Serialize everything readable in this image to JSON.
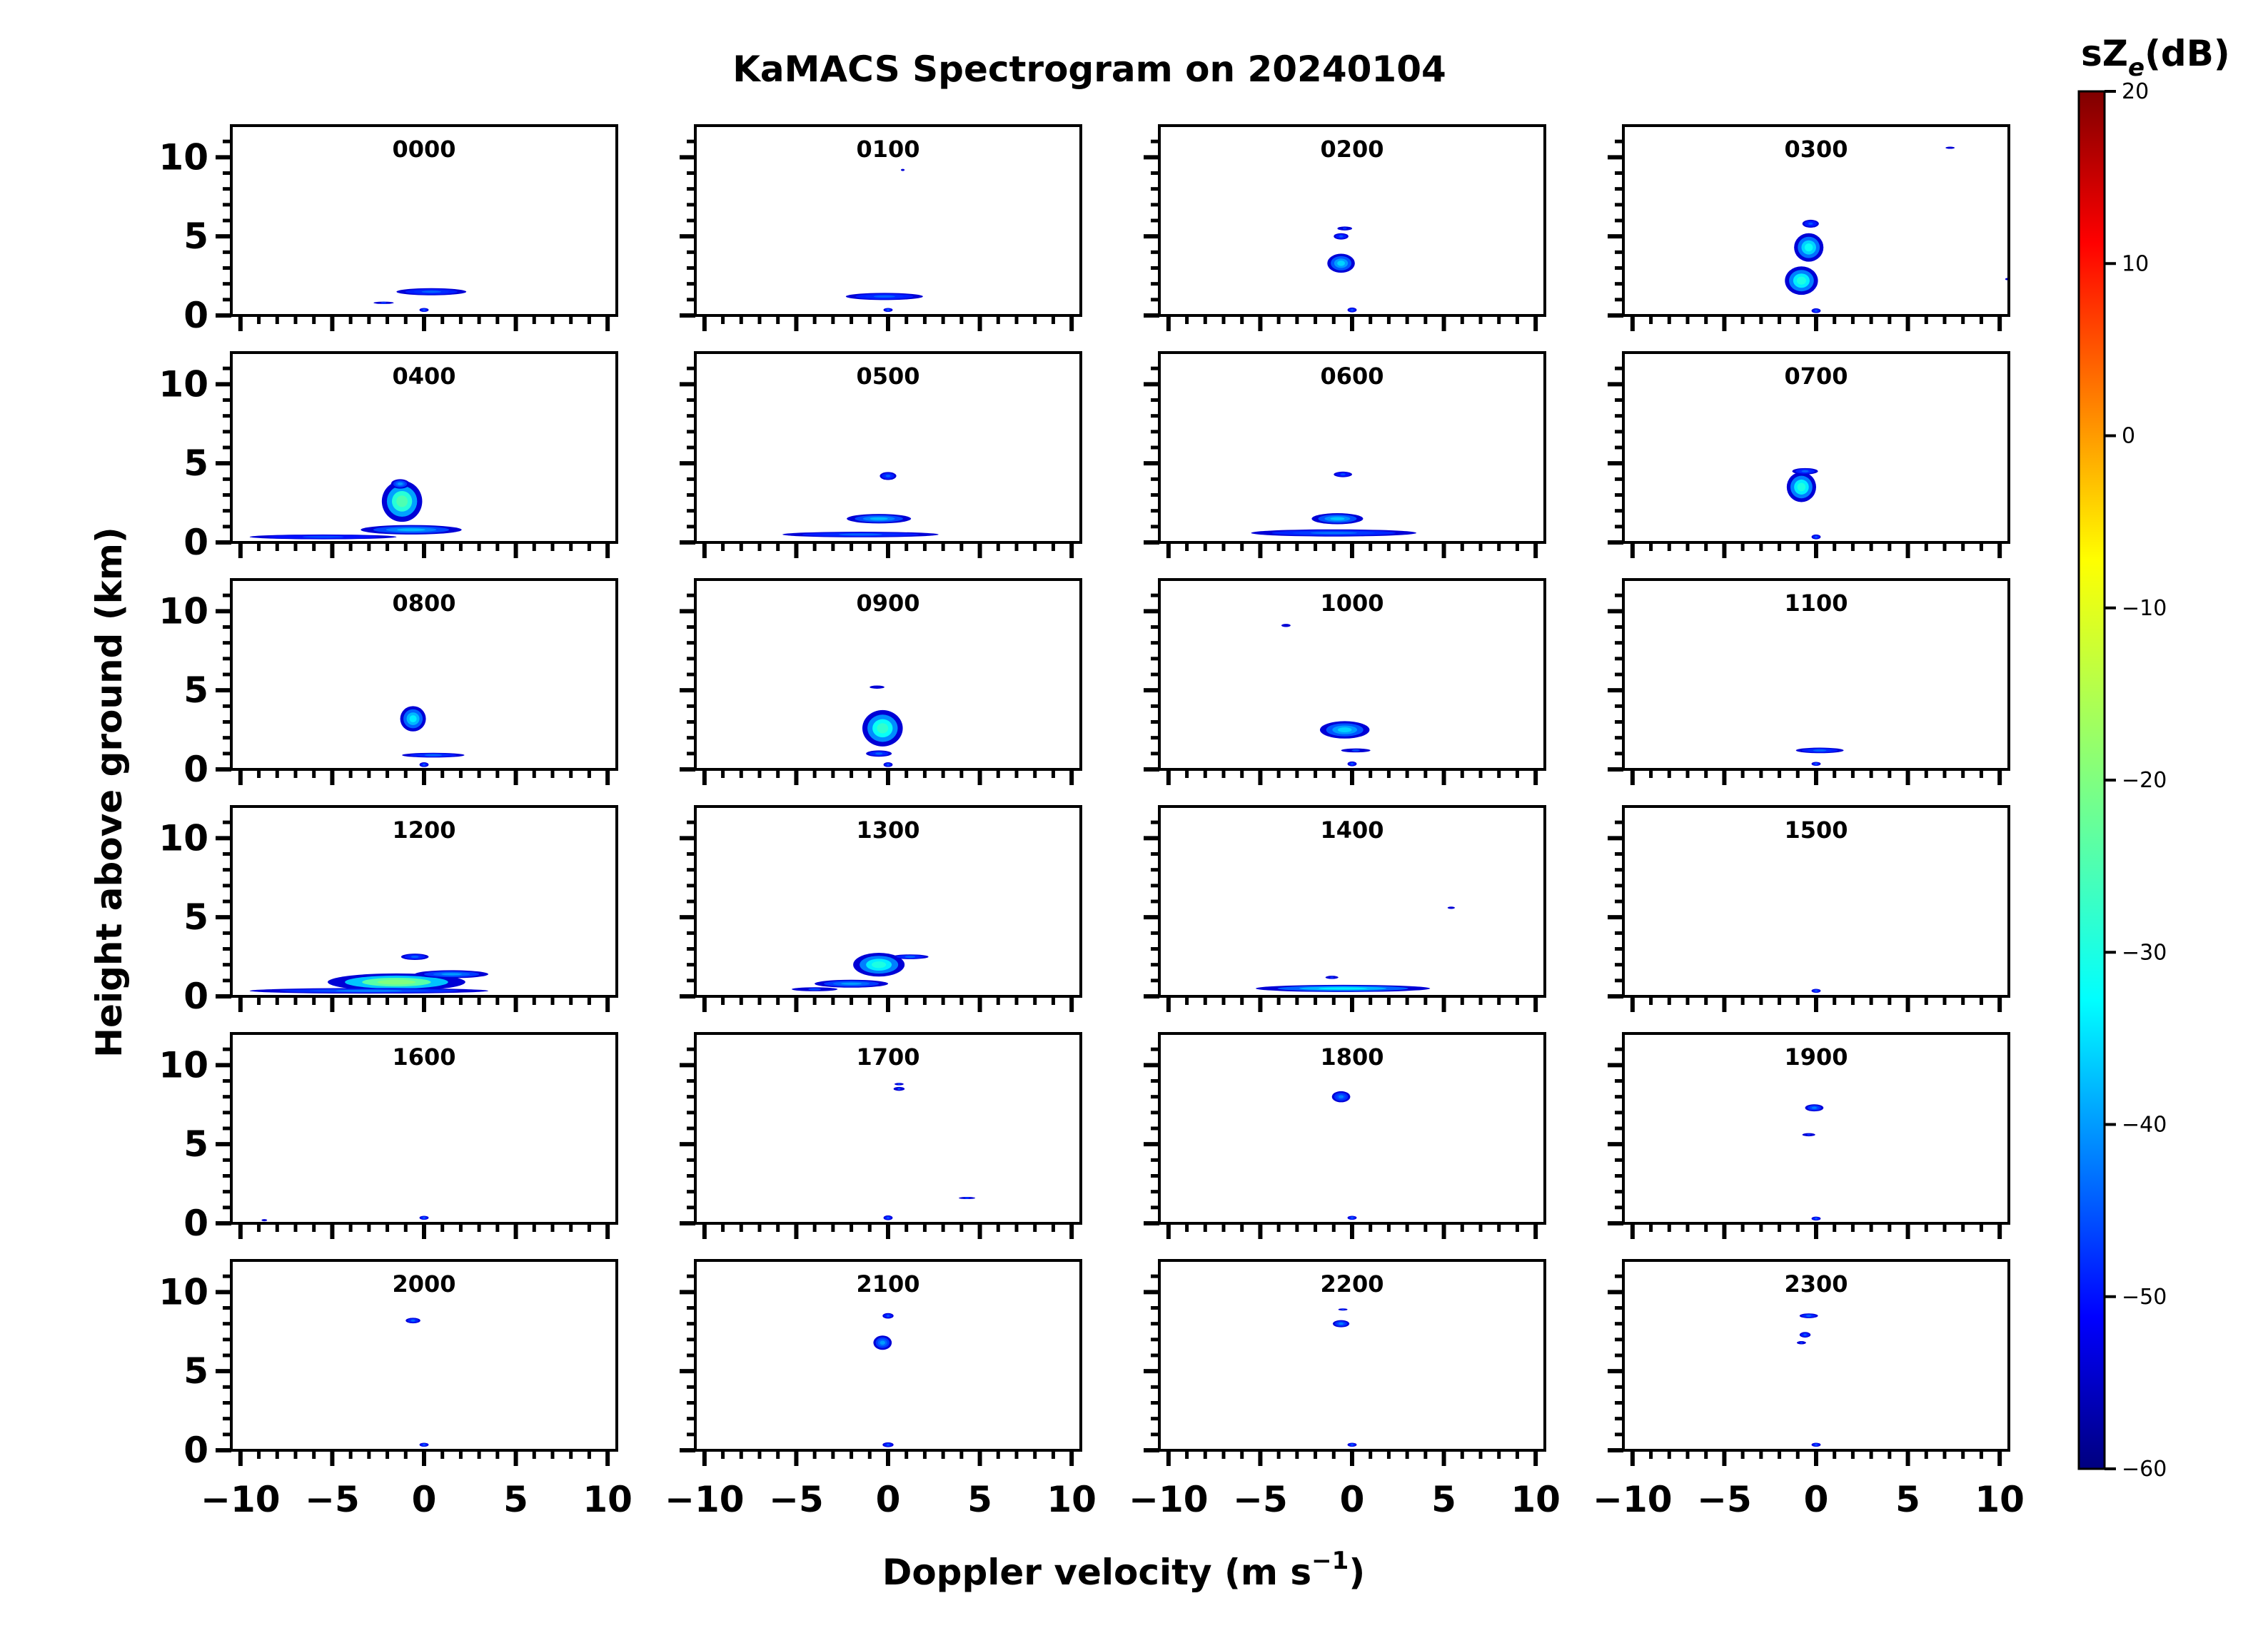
{
  "chart_data": {
    "type": "heatmap",
    "title": "KaMACS Spectrogram on 20240104",
    "xlabel": "Doppler velocity (m s⁻¹)",
    "xlabel_main": "Doppler velocity (m s",
    "xlabel_sup": "−1",
    "xlabel_close": ")",
    "ylabel": "Height above ground (km)",
    "xlim": [
      -10.5,
      10.5
    ],
    "ylim": [
      0,
      12
    ],
    "xticks": [
      -10,
      -5,
      0,
      5,
      10
    ],
    "xtick_labels": [
      "−10",
      "−5",
      "0",
      "5",
      "10"
    ],
    "yticks": [
      0,
      5,
      10
    ],
    "ytick_labels": [
      "0",
      "5",
      "10"
    ],
    "colorbar": {
      "label_main": "sZ",
      "label_sub": "e",
      "label_unit": "(dB)",
      "range": [
        -60,
        20
      ],
      "ticks": [
        20,
        10,
        0,
        -10,
        -20,
        -30,
        -40,
        -50,
        -60
      ],
      "tick_labels": [
        "20",
        "10",
        "0",
        "−10",
        "−20",
        "−30",
        "−40",
        "−50",
        "−60"
      ],
      "colormap": "jet",
      "colors": [
        "#00007f",
        "#0000ff",
        "#0080ff",
        "#00ffff",
        "#80ff80",
        "#ffff00",
        "#ff8000",
        "#ff0000",
        "#7f0000"
      ]
    },
    "panels": [
      {
        "label": "0000",
        "blobs": [
          {
            "v": 0.4,
            "h": 1.5,
            "w": 3.8,
            "t": 0.45,
            "p": -44
          },
          {
            "v": -2.2,
            "h": 0.8,
            "w": 1.1,
            "t": 0.15,
            "p": -48
          },
          {
            "v": 0.0,
            "h": 0.35,
            "w": 0.5,
            "t": 0.25,
            "p": -45
          }
        ]
      },
      {
        "label": "0100",
        "blobs": [
          {
            "v": -0.2,
            "h": 1.2,
            "w": 4.2,
            "t": 0.45,
            "p": -44
          },
          {
            "v": 0.0,
            "h": 0.35,
            "w": 0.5,
            "t": 0.25,
            "p": -45
          },
          {
            "v": 0.8,
            "h": 9.2,
            "w": 0.2,
            "t": 0.1,
            "p": -50
          }
        ]
      },
      {
        "label": "0200",
        "blobs": [
          {
            "v": -0.6,
            "h": 3.3,
            "w": 1.5,
            "t": 1.2,
            "p": -36
          },
          {
            "v": -0.6,
            "h": 5.0,
            "w": 0.8,
            "t": 0.4,
            "p": -45
          },
          {
            "v": -0.4,
            "h": 5.5,
            "w": 0.8,
            "t": 0.25,
            "p": -48
          },
          {
            "v": 0.0,
            "h": 0.35,
            "w": 0.5,
            "t": 0.3,
            "p": -45
          }
        ]
      },
      {
        "label": "0300",
        "blobs": [
          {
            "v": -0.8,
            "h": 2.2,
            "w": 1.8,
            "t": 1.8,
            "p": -30
          },
          {
            "v": -0.4,
            "h": 4.3,
            "w": 1.6,
            "t": 1.8,
            "p": -32
          },
          {
            "v": -0.3,
            "h": 5.8,
            "w": 0.9,
            "t": 0.5,
            "p": -45
          },
          {
            "v": 0.0,
            "h": 0.3,
            "w": 0.5,
            "t": 0.3,
            "p": -45
          },
          {
            "v": 7.3,
            "h": 10.6,
            "w": 0.5,
            "t": 0.1,
            "p": -50
          },
          {
            "v": 10.4,
            "h": 2.3,
            "w": 0.2,
            "t": 0.1,
            "p": -50
          }
        ]
      },
      {
        "label": "0400",
        "blobs": [
          {
            "v": -1.2,
            "h": 2.6,
            "w": 2.2,
            "t": 2.6,
            "p": -25
          },
          {
            "v": -0.7,
            "h": 0.8,
            "w": 5.5,
            "t": 0.6,
            "p": -38
          },
          {
            "v": -5.5,
            "h": 0.35,
            "w": 8.0,
            "t": 0.3,
            "p": -46
          },
          {
            "v": -1.3,
            "h": 3.7,
            "w": 1.0,
            "t": 0.6,
            "p": -40
          }
        ]
      },
      {
        "label": "0500",
        "blobs": [
          {
            "v": -0.5,
            "h": 1.5,
            "w": 3.5,
            "t": 0.6,
            "p": -38
          },
          {
            "v": -1.5,
            "h": 0.5,
            "w": 8.5,
            "t": 0.35,
            "p": -44
          },
          {
            "v": 0.0,
            "h": 4.2,
            "w": 0.9,
            "t": 0.5,
            "p": -44
          }
        ]
      },
      {
        "label": "0600",
        "blobs": [
          {
            "v": -0.8,
            "h": 1.5,
            "w": 2.8,
            "t": 0.7,
            "p": -37
          },
          {
            "v": -1.0,
            "h": 0.6,
            "w": 9.0,
            "t": 0.45,
            "p": -43
          },
          {
            "v": -0.5,
            "h": 4.3,
            "w": 1.0,
            "t": 0.35,
            "p": -46
          }
        ]
      },
      {
        "label": "0700",
        "blobs": [
          {
            "v": -0.8,
            "h": 3.5,
            "w": 1.6,
            "t": 1.9,
            "p": -30
          },
          {
            "v": -0.6,
            "h": 4.5,
            "w": 1.4,
            "t": 0.4,
            "p": -44
          },
          {
            "v": 0.0,
            "h": 0.35,
            "w": 0.5,
            "t": 0.3,
            "p": -45
          }
        ]
      },
      {
        "label": "0800",
        "blobs": [
          {
            "v": -0.6,
            "h": 3.2,
            "w": 1.4,
            "t": 1.6,
            "p": -34
          },
          {
            "v": 0.5,
            "h": 0.9,
            "w": 3.4,
            "t": 0.3,
            "p": -44
          },
          {
            "v": 0.0,
            "h": 0.3,
            "w": 0.5,
            "t": 0.3,
            "p": -45
          }
        ]
      },
      {
        "label": "0900",
        "blobs": [
          {
            "v": -0.3,
            "h": 2.6,
            "w": 2.2,
            "t": 2.3,
            "p": -28
          },
          {
            "v": -0.5,
            "h": 1.0,
            "w": 1.4,
            "t": 0.4,
            "p": -44
          },
          {
            "v": -0.6,
            "h": 5.2,
            "w": 0.8,
            "t": 0.2,
            "p": -50
          },
          {
            "v": 0.0,
            "h": 0.3,
            "w": 0.5,
            "t": 0.3,
            "p": -45
          }
        ]
      },
      {
        "label": "1000",
        "blobs": [
          {
            "v": -0.4,
            "h": 2.5,
            "w": 2.7,
            "t": 1.1,
            "p": -36
          },
          {
            "v": 0.2,
            "h": 1.2,
            "w": 1.6,
            "t": 0.25,
            "p": -46
          },
          {
            "v": -3.6,
            "h": 9.1,
            "w": 0.5,
            "t": 0.2,
            "p": -50
          },
          {
            "v": 0.0,
            "h": 0.35,
            "w": 0.5,
            "t": 0.3,
            "p": -45
          }
        ]
      },
      {
        "label": "1100",
        "blobs": [
          {
            "v": 0.2,
            "h": 1.2,
            "w": 2.6,
            "t": 0.35,
            "p": -44
          },
          {
            "v": 0.0,
            "h": 0.35,
            "w": 0.5,
            "t": 0.25,
            "p": -45
          }
        ]
      },
      {
        "label": "1200",
        "blobs": [
          {
            "v": -1.5,
            "h": 0.9,
            "w": 7.5,
            "t": 1.1,
            "p": -20
          },
          {
            "v": -3.0,
            "h": 0.35,
            "w": 13.0,
            "t": 0.35,
            "p": -42
          },
          {
            "v": -0.5,
            "h": 2.5,
            "w": 1.5,
            "t": 0.4,
            "p": -44
          },
          {
            "v": 1.5,
            "h": 1.4,
            "w": 4.0,
            "t": 0.5,
            "p": -40
          }
        ]
      },
      {
        "label": "1300",
        "blobs": [
          {
            "v": -0.5,
            "h": 2.0,
            "w": 2.8,
            "t": 1.5,
            "p": -30
          },
          {
            "v": -2.0,
            "h": 0.8,
            "w": 4.0,
            "t": 0.5,
            "p": -40
          },
          {
            "v": -4.0,
            "h": 0.45,
            "w": 2.5,
            "t": 0.25,
            "p": -46
          },
          {
            "v": 1.2,
            "h": 2.5,
            "w": 2.0,
            "t": 0.3,
            "p": -44
          }
        ]
      },
      {
        "label": "1400",
        "blobs": [
          {
            "v": -0.5,
            "h": 0.5,
            "w": 9.5,
            "t": 0.45,
            "p": -34
          },
          {
            "v": -1.1,
            "h": 1.2,
            "w": 0.7,
            "t": 0.2,
            "p": -48
          },
          {
            "v": 5.4,
            "h": 5.6,
            "w": 0.4,
            "t": 0.15,
            "p": -50
          }
        ]
      },
      {
        "label": "1500",
        "blobs": [
          {
            "v": 0.0,
            "h": 0.35,
            "w": 0.5,
            "t": 0.25,
            "p": -45
          }
        ]
      },
      {
        "label": "1600",
        "blobs": [
          {
            "v": 0.0,
            "h": 0.35,
            "w": 0.5,
            "t": 0.25,
            "p": -45
          },
          {
            "v": -8.7,
            "h": 0.2,
            "w": 0.3,
            "t": 0.1,
            "p": -50
          }
        ]
      },
      {
        "label": "1700",
        "blobs": [
          {
            "v": 0.6,
            "h": 8.5,
            "w": 0.6,
            "t": 0.25,
            "p": -46
          },
          {
            "v": 0.6,
            "h": 8.8,
            "w": 0.5,
            "t": 0.15,
            "p": -48
          },
          {
            "v": 4.3,
            "h": 1.6,
            "w": 0.9,
            "t": 0.12,
            "p": -48
          },
          {
            "v": 0.0,
            "h": 0.35,
            "w": 0.5,
            "t": 0.3,
            "p": -45
          }
        ]
      },
      {
        "label": "1800",
        "blobs": [
          {
            "v": -0.6,
            "h": 8.0,
            "w": 1.0,
            "t": 0.7,
            "p": -42
          },
          {
            "v": 0.0,
            "h": 0.35,
            "w": 0.5,
            "t": 0.25,
            "p": -45
          }
        ]
      },
      {
        "label": "1900",
        "blobs": [
          {
            "v": -0.1,
            "h": 7.3,
            "w": 1.0,
            "t": 0.45,
            "p": -42
          },
          {
            "v": -0.4,
            "h": 5.6,
            "w": 0.7,
            "t": 0.2,
            "p": -48
          },
          {
            "v": 0.0,
            "h": 0.3,
            "w": 0.5,
            "t": 0.25,
            "p": -45
          }
        ]
      },
      {
        "label": "2000",
        "blobs": [
          {
            "v": -0.6,
            "h": 8.2,
            "w": 0.8,
            "t": 0.35,
            "p": -44
          },
          {
            "v": 0.0,
            "h": 0.35,
            "w": 0.5,
            "t": 0.25,
            "p": -45
          }
        ]
      },
      {
        "label": "2100",
        "blobs": [
          {
            "v": -0.3,
            "h": 6.8,
            "w": 1.0,
            "t": 0.9,
            "p": -40
          },
          {
            "v": 0.0,
            "h": 8.5,
            "w": 0.6,
            "t": 0.35,
            "p": -45
          },
          {
            "v": 0.0,
            "h": 0.35,
            "w": 0.6,
            "t": 0.3,
            "p": -45
          }
        ]
      },
      {
        "label": "2200",
        "blobs": [
          {
            "v": -0.6,
            "h": 8.0,
            "w": 0.9,
            "t": 0.45,
            "p": -42
          },
          {
            "v": -0.5,
            "h": 8.9,
            "w": 0.5,
            "t": 0.12,
            "p": -48
          },
          {
            "v": 0.0,
            "h": 0.35,
            "w": 0.5,
            "t": 0.25,
            "p": -45
          }
        ]
      },
      {
        "label": "2300",
        "blobs": [
          {
            "v": -0.4,
            "h": 8.5,
            "w": 1.0,
            "t": 0.3,
            "p": -44
          },
          {
            "v": -0.6,
            "h": 7.3,
            "w": 0.6,
            "t": 0.35,
            "p": -45
          },
          {
            "v": -0.8,
            "h": 6.8,
            "w": 0.5,
            "t": 0.2,
            "p": -48
          },
          {
            "v": 0.0,
            "h": 0.35,
            "w": 0.5,
            "t": 0.25,
            "p": -45
          }
        ]
      }
    ]
  }
}
